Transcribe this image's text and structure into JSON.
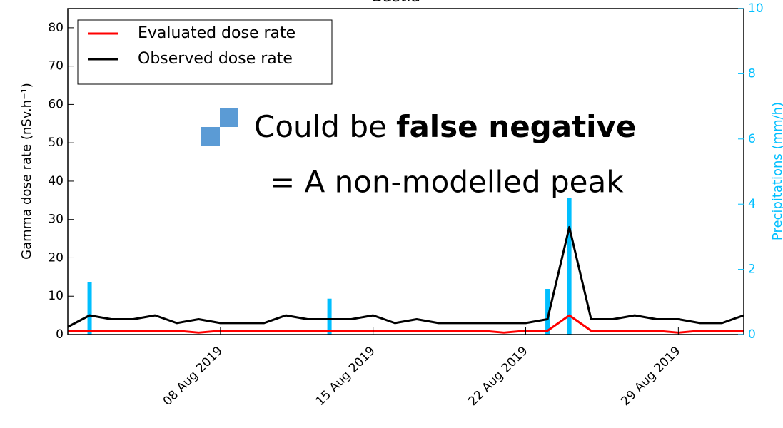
{
  "chart_data": {
    "type": "line",
    "title": "Bastia",
    "y_label": "Gamma dose rate (nSv.h⁻¹)",
    "y2_label": "Precipitations (mm/h)",
    "annotation": {
      "prefix": "Could be ",
      "bold": "false negative",
      "line2": "= A non-modelled peak"
    },
    "x": [
      "2019-08-01",
      "2019-08-02",
      "2019-08-03",
      "2019-08-04",
      "2019-08-05",
      "2019-08-06",
      "2019-08-07",
      "2019-08-08",
      "2019-08-09",
      "2019-08-10",
      "2019-08-11",
      "2019-08-12",
      "2019-08-13",
      "2019-08-14",
      "2019-08-15",
      "2019-08-16",
      "2019-08-17",
      "2019-08-18",
      "2019-08-19",
      "2019-08-20",
      "2019-08-21",
      "2019-08-22",
      "2019-08-23",
      "2019-08-24",
      "2019-08-25",
      "2019-08-26",
      "2019-08-27",
      "2019-08-28",
      "2019-08-29",
      "2019-08-30",
      "2019-08-31",
      "2019-09-01"
    ],
    "xlim": [
      "2019-08-01",
      "2019-09-01"
    ],
    "xticks": [
      {
        "value": "2019-08-08",
        "label": "08 Aug 2019"
      },
      {
        "value": "2019-08-15",
        "label": "15 Aug 2019"
      },
      {
        "value": "2019-08-22",
        "label": "22 Aug 2019"
      },
      {
        "value": "2019-08-29",
        "label": "29 Aug 2019"
      }
    ],
    "ylim": [
      0,
      85
    ],
    "yticks": [
      0,
      10,
      20,
      30,
      40,
      50,
      60,
      70,
      80
    ],
    "y2lim": [
      0,
      10
    ],
    "y2ticks": [
      0,
      2,
      4,
      6,
      8,
      10
    ],
    "legend": "upper left",
    "series": [
      {
        "name": "Evaluated dose rate",
        "color": "#ff0000",
        "values": [
          1,
          1,
          1,
          1,
          1,
          1,
          0.5,
          1,
          1,
          1,
          1,
          1,
          1,
          1,
          1,
          1,
          1,
          1,
          1,
          1,
          0.5,
          1,
          1,
          5,
          1,
          1,
          1,
          1,
          0.5,
          1,
          1,
          1
        ]
      },
      {
        "name": "Observed dose rate",
        "color": "#000000",
        "values": [
          2,
          5,
          4,
          4,
          5,
          3,
          4,
          3,
          3,
          3,
          5,
          4,
          4,
          4,
          5,
          3,
          4,
          3,
          3,
          3,
          3,
          3,
          4,
          28,
          4,
          4,
          5,
          4,
          4,
          3,
          3,
          5
        ]
      },
      {
        "type": "bar",
        "axis": "y2",
        "color": "#00bfff",
        "values": [
          0,
          1.6,
          0,
          0,
          0,
          0,
          0,
          0,
          0,
          0,
          0,
          0,
          1.1,
          0,
          0,
          0,
          0,
          0,
          0,
          0,
          0,
          0,
          1.4,
          4.2,
          0,
          0,
          0,
          0,
          0,
          0,
          0,
          0
        ]
      }
    ]
  }
}
